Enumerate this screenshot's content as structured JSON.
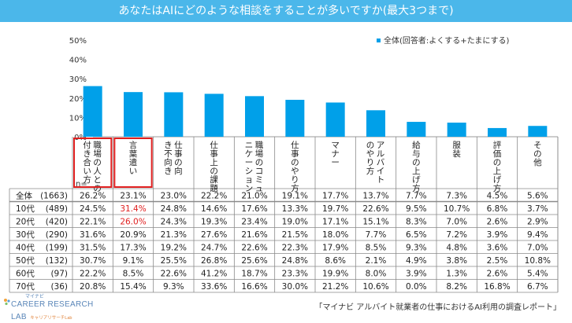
{
  "title": "あなたはAIにどのような相談をすることが多いですか(最大3つまで)",
  "chart_data": {
    "type": "bar",
    "title": "あなたはAIにどのような相談をすることが多いですか(最大3つまで)",
    "ylim": [
      0,
      50
    ],
    "yticks": [
      "50%",
      "40%",
      "30%",
      "20%",
      "10%",
      "0%"
    ],
    "legend": "全体(回答者:よくする+たまにする)",
    "legend_position": "top-right",
    "bar_color": "#00a0e9",
    "categories": [
      "職場の人との付き合い方",
      "言葉遣い",
      "仕事の向き不向き",
      "仕事上の課題",
      "職場のコミュニケーション",
      "仕事のやり方",
      "マナー",
      "アルバイトのやり方",
      "給与の上げ方",
      "服装",
      "評価の上げ方",
      "その他"
    ],
    "values": [
      26.2,
      23.1,
      23.0,
      22.2,
      21.0,
      19.1,
      17.7,
      13.7,
      7.7,
      7.3,
      4.5,
      5.6
    ],
    "n_label": "n=",
    "highlight_color": "#e02020",
    "highlight_columns": [
      0,
      1
    ],
    "rows": [
      {
        "label": "全体",
        "n": "(1663)",
        "values": [
          "26.2%",
          "23.1%",
          "23.0%",
          "22.2%",
          "21.0%",
          "19.1%",
          "17.7%",
          "13.7%",
          "7.7%",
          "7.3%",
          "4.5%",
          "5.6%"
        ],
        "red": []
      },
      {
        "label": "10代",
        "n": "(489)",
        "values": [
          "24.5%",
          "31.4%",
          "24.8%",
          "14.6%",
          "17.6%",
          "13.3%",
          "19.7%",
          "22.6%",
          "9.5%",
          "10.7%",
          "6.8%",
          "3.7%"
        ],
        "red": [
          1
        ]
      },
      {
        "label": "20代",
        "n": "(420)",
        "values": [
          "22.1%",
          "26.0%",
          "24.3%",
          "19.3%",
          "23.4%",
          "19.0%",
          "17.1%",
          "15.1%",
          "8.3%",
          "7.0%",
          "2.6%",
          "2.9%"
        ],
        "red": [
          1
        ]
      },
      {
        "label": "30代",
        "n": "(290)",
        "values": [
          "31.6%",
          "20.9%",
          "21.3%",
          "27.6%",
          "21.6%",
          "21.5%",
          "18.0%",
          "7.7%",
          "6.5%",
          "7.2%",
          "3.9%",
          "9.4%"
        ],
        "red": []
      },
      {
        "label": "40代",
        "n": "(199)",
        "values": [
          "31.5%",
          "17.3%",
          "19.2%",
          "24.7%",
          "22.6%",
          "22.3%",
          "17.9%",
          "8.5%",
          "9.3%",
          "4.8%",
          "3.6%",
          "7.0%"
        ],
        "red": []
      },
      {
        "label": "50代",
        "n": "(132)",
        "values": [
          "30.7%",
          "9.1%",
          "25.5%",
          "26.8%",
          "25.6%",
          "24.8%",
          "8.6%",
          "2.1%",
          "4.9%",
          "3.8%",
          "2.5%",
          "10.8%"
        ],
        "red": []
      },
      {
        "label": "60代",
        "n": "(97)",
        "values": [
          "22.2%",
          "8.5%",
          "22.6%",
          "41.2%",
          "18.7%",
          "23.3%",
          "19.9%",
          "8.0%",
          "3.9%",
          "1.3%",
          "2.6%",
          "5.4%"
        ],
        "red": []
      },
      {
        "label": "70代",
        "n": "(36)",
        "values": [
          "20.8%",
          "15.4%",
          "9.3%",
          "33.6%",
          "16.6%",
          "30.0%",
          "21.2%",
          "10.6%",
          "0.0%",
          "8.2%",
          "16.8%",
          "6.7%"
        ],
        "red": []
      }
    ]
  },
  "footer": {
    "logo_small": "マイナビ",
    "logo_main": "CAREER RESEARCH",
    "logo_lab": "LAB",
    "logo_sub": "キャリアリサーチLab",
    "source": "「マイナビ アルバイト就業者の仕事におけるAI利用の調査レポート」"
  }
}
